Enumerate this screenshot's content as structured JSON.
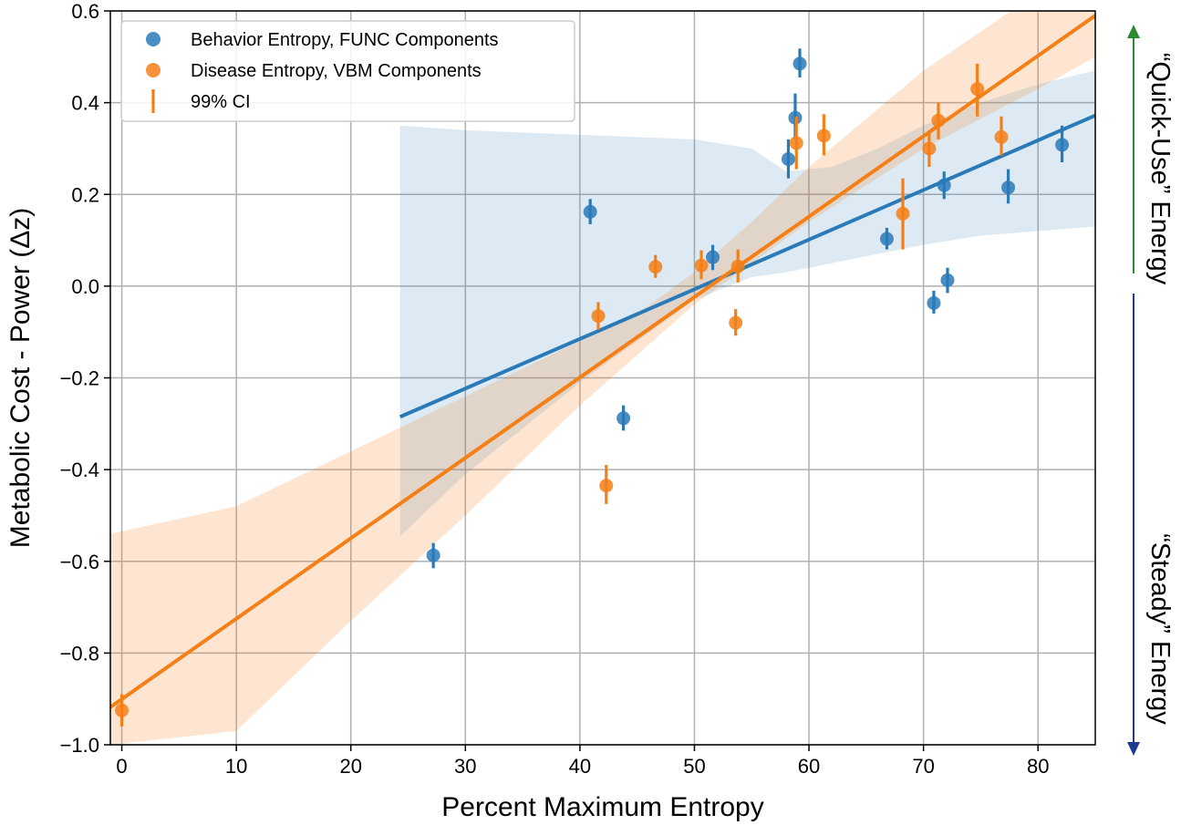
{
  "chart_data": {
    "type": "scatter",
    "xlabel": "Percent Maximum Entropy",
    "ylabel": "Metabolic Cost - Power (Δz)",
    "xlim": [
      -1,
      85
    ],
    "ylim": [
      -1.0,
      0.6
    ],
    "xticks": [
      0,
      10,
      20,
      30,
      40,
      50,
      60,
      70,
      80
    ],
    "yticks": [
      -1.0,
      -0.8,
      -0.6,
      -0.4,
      -0.2,
      0.0,
      0.2,
      0.4,
      0.6
    ],
    "xtick_labels": [
      "0",
      "10",
      "20",
      "30",
      "40",
      "50",
      "60",
      "70",
      "80"
    ],
    "ytick_labels": [
      "−1.0",
      "−0.8",
      "−0.6",
      "−0.4",
      "−0.2",
      "0.0",
      "0.2",
      "0.4",
      "0.6"
    ],
    "grid": true,
    "legend_position": "top-left",
    "series": [
      {
        "name": "Behavior Entropy, FUNC Components",
        "color": "#2a7ab8",
        "points": [
          {
            "x": 27.2,
            "y": -0.587,
            "lo": -0.615,
            "hi": -0.56
          },
          {
            "x": 40.9,
            "y": 0.162,
            "lo": 0.135,
            "hi": 0.19
          },
          {
            "x": 43.8,
            "y": -0.288,
            "lo": -0.315,
            "hi": -0.26
          },
          {
            "x": 51.6,
            "y": 0.063,
            "lo": 0.035,
            "hi": 0.09
          },
          {
            "x": 58.2,
            "y": 0.277,
            "lo": 0.235,
            "hi": 0.32
          },
          {
            "x": 58.8,
            "y": 0.367,
            "lo": 0.32,
            "hi": 0.42
          },
          {
            "x": 59.2,
            "y": 0.485,
            "lo": 0.455,
            "hi": 0.518
          },
          {
            "x": 66.8,
            "y": 0.103,
            "lo": 0.08,
            "hi": 0.127
          },
          {
            "x": 70.9,
            "y": -0.037,
            "lo": -0.06,
            "hi": -0.01
          },
          {
            "x": 71.8,
            "y": 0.22,
            "lo": 0.19,
            "hi": 0.25
          },
          {
            "x": 72.1,
            "y": 0.013,
            "lo": -0.015,
            "hi": 0.04
          },
          {
            "x": 77.4,
            "y": 0.215,
            "lo": 0.18,
            "hi": 0.255
          },
          {
            "x": 82.1,
            "y": 0.308,
            "lo": 0.27,
            "hi": 0.35
          }
        ],
        "fit": {
          "x": [
            24.3,
            85
          ],
          "y": [
            -0.285,
            0.372
          ]
        },
        "band": {
          "x": [
            24.3,
            30,
            40,
            50,
            55,
            58,
            62,
            66,
            70,
            75,
            80,
            85
          ],
          "lower": [
            -0.545,
            -0.41,
            -0.21,
            -0.03,
            0.02,
            0.03,
            0.05,
            0.07,
            0.09,
            0.11,
            0.12,
            0.13
          ],
          "upper": [
            0.35,
            0.34,
            0.33,
            0.32,
            0.3,
            0.25,
            0.26,
            0.3,
            0.35,
            0.4,
            0.44,
            0.47
          ]
        }
      },
      {
        "name": "Disease Entropy, VBM Components",
        "color": "#f57f17",
        "points": [
          {
            "x": 0.0,
            "y": -0.925,
            "lo": -0.96,
            "hi": -0.89
          },
          {
            "x": 41.6,
            "y": -0.065,
            "lo": -0.095,
            "hi": -0.035
          },
          {
            "x": 42.3,
            "y": -0.435,
            "lo": -0.475,
            "hi": -0.39
          },
          {
            "x": 46.6,
            "y": 0.042,
            "lo": 0.018,
            "hi": 0.068
          },
          {
            "x": 50.6,
            "y": 0.045,
            "lo": 0.015,
            "hi": 0.078
          },
          {
            "x": 53.6,
            "y": -0.08,
            "lo": -0.108,
            "hi": -0.05
          },
          {
            "x": 53.8,
            "y": 0.043,
            "lo": 0.008,
            "hi": 0.08
          },
          {
            "x": 58.9,
            "y": 0.312,
            "lo": 0.255,
            "hi": 0.37
          },
          {
            "x": 61.3,
            "y": 0.328,
            "lo": 0.285,
            "hi": 0.375
          },
          {
            "x": 68.2,
            "y": 0.158,
            "lo": 0.08,
            "hi": 0.235
          },
          {
            "x": 70.5,
            "y": 0.3,
            "lo": 0.26,
            "hi": 0.335
          },
          {
            "x": 71.3,
            "y": 0.361,
            "lo": 0.32,
            "hi": 0.4
          },
          {
            "x": 74.7,
            "y": 0.43,
            "lo": 0.37,
            "hi": 0.485
          },
          {
            "x": 76.8,
            "y": 0.325,
            "lo": 0.285,
            "hi": 0.37
          }
        ],
        "fit": {
          "x": [
            -1,
            85
          ],
          "y": [
            -0.918,
            0.59
          ]
        },
        "band": {
          "x": [
            -1,
            10,
            20,
            30,
            40,
            45,
            50,
            55,
            60,
            70,
            80,
            85
          ],
          "lower": [
            -1.0,
            -0.97,
            -0.73,
            -0.5,
            -0.26,
            -0.15,
            -0.04,
            0.05,
            0.14,
            0.3,
            0.43,
            0.5
          ],
          "upper": [
            -0.54,
            -0.48,
            -0.36,
            -0.24,
            -0.12,
            -0.06,
            0.03,
            0.14,
            0.26,
            0.47,
            0.64,
            0.72
          ]
        }
      }
    ],
    "legend": [
      {
        "label": "Behavior Entropy, FUNC Components",
        "marker": "circle",
        "color": "#2a7ab8"
      },
      {
        "label": "Disease Entropy, VBM Components",
        "marker": "circle",
        "color": "#f57f17"
      },
      {
        "label": "99% CI",
        "marker": "vline",
        "color": "#f57f17"
      }
    ]
  },
  "annotations": {
    "quick_use": {
      "label": "“Quick-Use” Energy",
      "color": "#2e8b2e"
    },
    "steady": {
      "label": "“Steady” Energy",
      "color": "#1f3a93"
    }
  }
}
